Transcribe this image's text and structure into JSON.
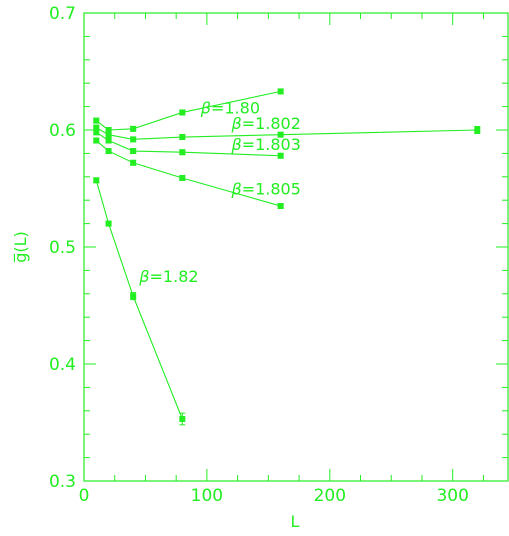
{
  "chart_data": {
    "type": "scatter",
    "title": "",
    "xlabel": "L",
    "ylabel": "g̅(L)",
    "xlim": [
      0,
      345
    ],
    "ylim": [
      0.3,
      0.7
    ],
    "x_ticks": [
      0,
      100,
      200,
      300
    ],
    "y_ticks": [
      0.3,
      0.4,
      0.5,
      0.6,
      0.7
    ],
    "grid": false,
    "color": "#22ee22",
    "series": [
      {
        "name": "β=1.80",
        "x": [
          10,
          20,
          40,
          80,
          160
        ],
        "y": [
          0.608,
          0.6,
          0.601,
          0.615,
          0.633
        ],
        "err": [
          0.002,
          0.002,
          0.002,
          0.002,
          0.002
        ],
        "label": {
          "beta": "β",
          "rest": "=1.80",
          "x": 95,
          "y": 0.614
        }
      },
      {
        "name": "β=1.802",
        "x": [
          10,
          20,
          40,
          80,
          160,
          320
        ],
        "y": [
          0.602,
          0.596,
          0.592,
          0.594,
          0.596,
          0.6
        ],
        "err": [
          0.002,
          0.002,
          0.002,
          0.002,
          0.002,
          0.003
        ],
        "label": {
          "beta": "β",
          "rest": "=1.802",
          "x": 120,
          "y": 0.601
        }
      },
      {
        "name": "β=1.803",
        "x": [
          10,
          20,
          40,
          80,
          160
        ],
        "y": [
          0.598,
          0.591,
          0.582,
          0.581,
          0.578
        ],
        "err": [
          0.002,
          0.002,
          0.002,
          0.002,
          0.002
        ],
        "label": {
          "beta": "β",
          "rest": "=1.803",
          "x": 120,
          "y": 0.583
        }
      },
      {
        "name": "β=1.805",
        "x": [
          10,
          20,
          40,
          80,
          160
        ],
        "y": [
          0.591,
          0.582,
          0.572,
          0.559,
          0.535
        ],
        "err": [
          0.002,
          0.002,
          0.002,
          0.002,
          0.002
        ],
        "label": {
          "beta": "β",
          "rest": "=1.805",
          "x": 120,
          "y": 0.545
        }
      },
      {
        "name": "β=1.82",
        "x": [
          10,
          20,
          40,
          80
        ],
        "y": [
          0.557,
          0.52,
          0.458,
          0.353
        ],
        "err": [
          0.002,
          0.002,
          0.003,
          0.005
        ],
        "label": {
          "beta": "β",
          "rest": "=1.82",
          "x": 45,
          "y": 0.47
        }
      }
    ]
  }
}
